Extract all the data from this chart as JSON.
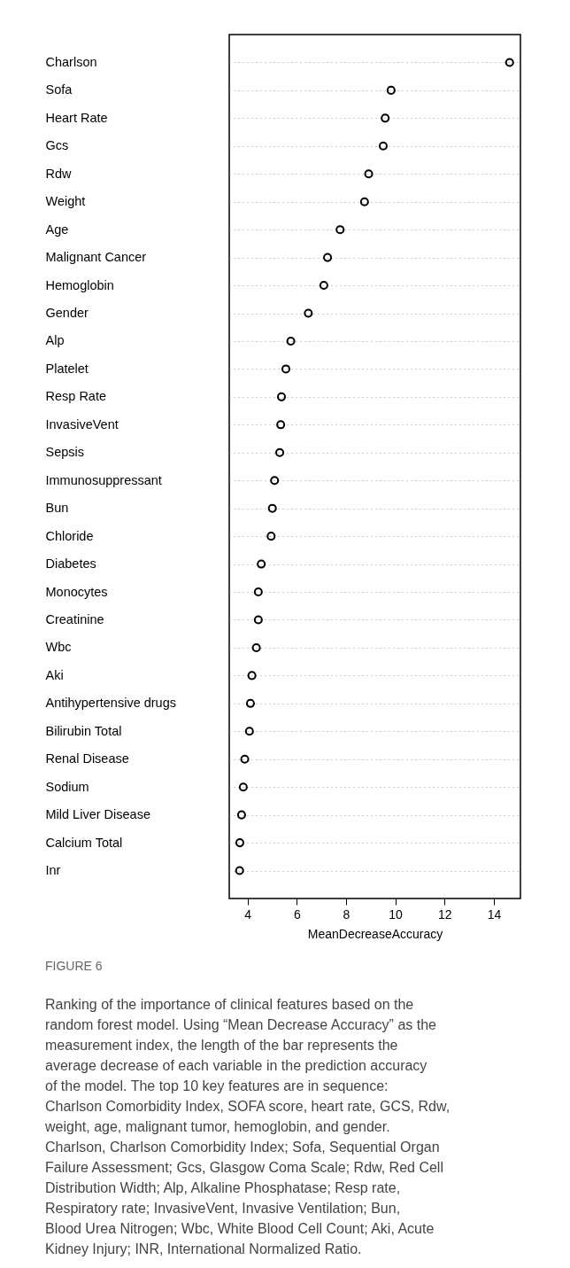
{
  "chart_data": {
    "type": "scatter",
    "categories": [
      "Charlson",
      "Sofa",
      "Heart Rate",
      "Gcs",
      "Rdw",
      "Weight",
      "Age",
      "Malignant Cancer",
      "Hemoglobin",
      "Gender",
      "Alp",
      "Platelet",
      "Resp Rate",
      "InvasiveVent",
      "Sepsis",
      "Immunosuppressant",
      "Bun",
      "Chloride",
      "Diabetes",
      "Monocytes",
      "Creatinine",
      "Wbc",
      "Aki",
      "Antihypertensive drugs",
      "Bilirubin Total",
      "Renal Disease",
      "Sodium",
      "Mild Liver Disease",
      "Calcium Total",
      "Inr"
    ],
    "values": [
      14.64,
      9.83,
      9.59,
      9.51,
      8.92,
      8.75,
      7.76,
      7.25,
      7.1,
      6.47,
      5.76,
      5.56,
      5.38,
      5.35,
      5.31,
      5.1,
      5.01,
      4.96,
      4.56,
      4.44,
      4.44,
      4.36,
      4.18,
      4.12,
      4.08,
      3.89,
      3.83,
      3.76,
      3.69,
      3.68
    ],
    "color": "#000000",
    "orientation": "horizontal",
    "xlabel": "MeanDecreaseAccuracy",
    "xlim": [
      3.26,
      15.08
    ],
    "xticks": [
      4,
      6,
      8,
      10,
      12,
      14
    ],
    "grid": "y",
    "line_style": "dotted",
    "marker": "circle",
    "annotations": [
      "FIGURE 6",
      "Ranking of the importance of clinical features based on the random forest model. Using “Mean Decrease Accuracy” as the measurement index, the length of the bar represents the average decrease of each variable in the prediction accuracy of the model. The top 10 key features are in sequence: Charlson Comorbidity Index, SOFA score, heart rate, GCS, Rdw, weight, age, malignant tumor, hemoglobin, and gender. Charlson, Charlson Comorbidity Index; Sofa, Sequential Organ Failure Assessment; Gcs, Glasgow Coma Scale; Rdw, Red Cell Distribution Width; Alp, Alkaline Phosphatase; Resp rate, Respiratory rate; InvasiveVent, Invasive Ventilation; Bun, Blood Urea Nitrogen; Wbc, White Blood Cell Count; Aki, Acute Kidney Injury; INR, International Normalized Ratio."
    ]
  }
}
